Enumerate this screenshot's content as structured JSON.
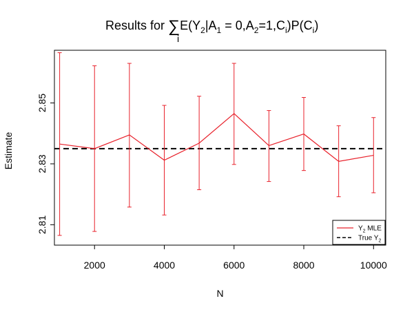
{
  "chart_data": {
    "type": "line",
    "title": "Results for ∑ E(Y₂|A₁ = 0,A₂=1,Cᵢ)P(Cᵢ)",
    "title_parts": {
      "prefix": "Results for ",
      "sum_symbol": "∑",
      "sum_index": "i",
      "expr_1": "E(Y",
      "sub_1": "2",
      "expr_2": "|A",
      "sub_2": "1",
      "expr_3": " = 0,A",
      "sub_3": "2",
      "expr_4": "=1,C",
      "sub_4": "i",
      "expr_5": ")P(C",
      "sub_5": "i",
      "expr_6": ")"
    },
    "xlabel": "N",
    "ylabel": "Estimate",
    "xlim": [
      850,
      10350
    ],
    "ylim": [
      2.8033,
      2.8673
    ],
    "x_ticks": [
      2000,
      4000,
      6000,
      8000,
      10000
    ],
    "y_ticks": [
      2.81,
      2.83,
      2.85
    ],
    "y_tick_labels": [
      "2.81",
      "2.83",
      "2.85"
    ],
    "grid": false,
    "legend_position": "bottom-right",
    "series": [
      {
        "name": "Y₂ MLE",
        "legend_text": {
          "base": "Y",
          "sub": "2",
          "rest": " MLE"
        },
        "style": "solid",
        "color": "#e8202a",
        "x": [
          1000,
          2000,
          3000,
          4000,
          5000,
          6000,
          7000,
          8000,
          9000,
          10000
        ],
        "y": [
          2.8365,
          2.835,
          2.8395,
          2.8312,
          2.8368,
          2.8465,
          2.836,
          2.8398,
          2.8308,
          2.8328
        ],
        "lower": [
          2.8065,
          2.8078,
          2.8158,
          2.8132,
          2.8215,
          2.8298,
          2.8242,
          2.8278,
          2.8192,
          2.8205
        ],
        "upper": [
          2.8665,
          2.8622,
          2.863,
          2.8492,
          2.8522,
          2.863,
          2.8475,
          2.8518,
          2.8425,
          2.8452
        ]
      },
      {
        "name": "True Y₂",
        "legend_text": {
          "base": "True Y",
          "sub": "2",
          "rest": ""
        },
        "style": "dashed",
        "color": "#000000",
        "hline": 2.835
      }
    ]
  }
}
